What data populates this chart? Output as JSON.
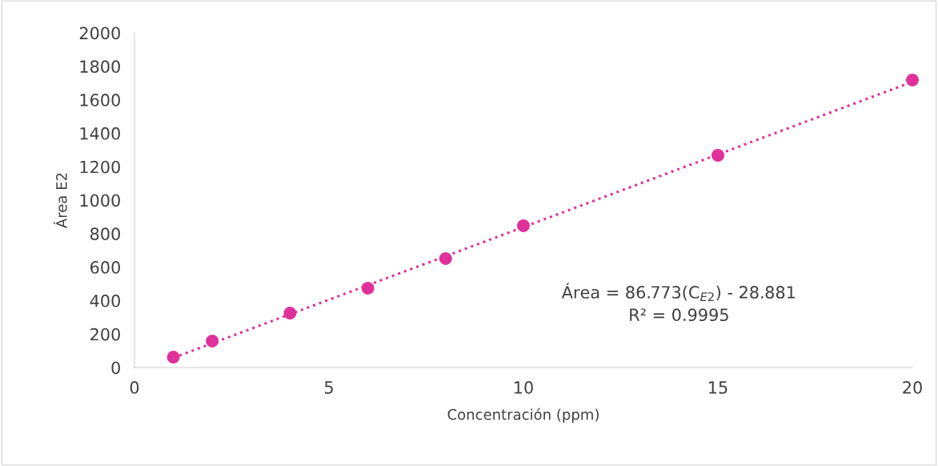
{
  "chart_data": {
    "type": "scatter",
    "xlabel": "Concentración (ppm)",
    "ylabel": "Área E2",
    "xlim": [
      0,
      20
    ],
    "xticks": [
      0,
      5,
      10,
      15,
      20
    ],
    "ylim": [
      0,
      2000
    ],
    "yticks": [
      0,
      200,
      400,
      600,
      800,
      1000,
      1200,
      1400,
      1600,
      1800,
      2000
    ],
    "grid": false,
    "legend": false,
    "marker": "circle",
    "series": [
      {
        "color": "#e0309a",
        "x": [
          1,
          2,
          4,
          6,
          8,
          10,
          15,
          20
        ],
        "values": [
          62,
          158,
          325,
          474,
          651,
          847,
          1268,
          1718
        ]
      },
      {
        "type": "line",
        "color": "#e0309a",
        "line_style": "dotted",
        "marker": "none",
        "x": [
          1,
          20
        ],
        "values": [
          58,
          1707
        ]
      }
    ],
    "annotations": [
      "Área = 86.773(C$_{E2}$) - 28.881\nR² = 0.9995"
    ]
  }
}
